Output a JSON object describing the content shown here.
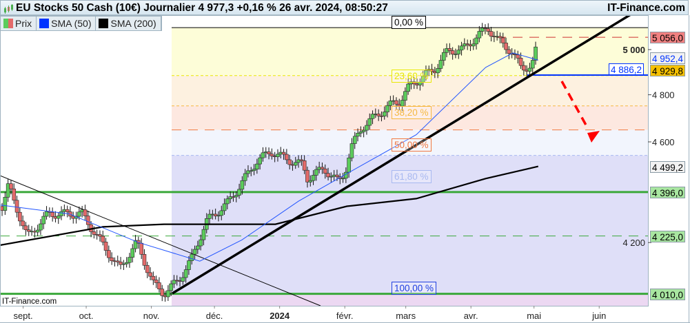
{
  "header": {
    "title": "EU Stocks 50 Cash (10€) Journalier 4 977,3 +0,16 % 26 avr. 2024, 08:50:27",
    "brand": "IT-Finance.com"
  },
  "legend": [
    {
      "label": "Prix",
      "color": "#5ccc5c",
      "color2": "#e36a6a"
    },
    {
      "label": "SMA (50)",
      "color": "#0033ff"
    },
    {
      "label": "SMA (200)",
      "color": "#000000"
    }
  ],
  "watermark": "IT-Finance.com",
  "price_tags": [
    {
      "label": "5 056,0",
      "value": 5056.0,
      "bg": "#f08080",
      "fg": "#000000"
    },
    {
      "label": "4 952,4",
      "value": 4952.4,
      "bg": "#f2f2f2",
      "fg": "#0033ff"
    },
    {
      "label": "4 929,8",
      "value": 4929.8,
      "bg": "#f5c000",
      "fg": "#000000"
    },
    {
      "label": "4 499,2",
      "value": 4499.2,
      "bg": "#f2f2f2",
      "fg": "#000000"
    },
    {
      "label": "4 396,0",
      "value": 4396.0,
      "bg": "#a8e6a0",
      "fg": "#000000"
    },
    {
      "label": "4 225,0",
      "value": 4225.0,
      "bg": "#a8e6a0",
      "fg": "#000000"
    },
    {
      "label": "4 010,0",
      "value": 4010.0,
      "bg": "#a8e6a0",
      "fg": "#000000"
    }
  ],
  "support_label": {
    "label": "4 886,2",
    "value": 4886.2,
    "color": "#0033ff"
  },
  "fibonacci": [
    {
      "label": "0,00 %",
      "value": 5100,
      "color": "#000000",
      "zone": "#fdfdd8"
    },
    {
      "label": "23,60 %",
      "value": 4884,
      "color": "#e8e800",
      "zone": "#fdf1e0"
    },
    {
      "label": "38,20 %",
      "value": 4752,
      "color": "#f5b840",
      "zone": "#fde8e0"
    },
    {
      "label": "50,00 %",
      "value": 4650,
      "color": "#f07840",
      "zone": "#f2f5fd"
    },
    {
      "label": "61,80 %",
      "value": 4544,
      "color": "#a8b8f0",
      "zone": "#dfdff8"
    },
    {
      "label": "100,00 %",
      "value": 4010,
      "color": "#2040e0",
      "zone": "#ecd8f2"
    }
  ],
  "chart_data": {
    "type": "candlestick",
    "y_scale": "log",
    "y_ticks": [
      4200,
      4600,
      4800,
      5000
    ],
    "y_tick_labels": [
      "4 200",
      "4 600",
      "4 800",
      "5 000"
    ],
    "x_ticks": [
      {
        "label": "sept.",
        "date": "2023-09-01"
      },
      {
        "label": "oct.",
        "date": "2023-10-01"
      },
      {
        "label": "nov.",
        "date": "2023-11-01"
      },
      {
        "label": "déc.",
        "date": "2023-12-01"
      },
      {
        "label": "2024",
        "date": "2024-01-01",
        "bold": true
      },
      {
        "label": "févr.",
        "date": "2024-02-01"
      },
      {
        "label": "mars",
        "date": "2024-03-01"
      },
      {
        "label": "avr.",
        "date": "2024-04-01"
      },
      {
        "label": "mai",
        "date": "2024-05-01"
      },
      {
        "label": "juin",
        "date": "2024-06-01"
      }
    ],
    "close_path": [
      [
        "2023-08-22",
        4339
      ],
      [
        "2023-08-25",
        4420
      ],
      [
        "2023-09-03",
        4220
      ],
      [
        "2023-09-13",
        4310
      ],
      [
        "2023-09-29",
        4310
      ],
      [
        "2023-10-09",
        4190
      ],
      [
        "2023-10-17",
        4100
      ],
      [
        "2023-10-25",
        4200
      ],
      [
        "2023-11-02",
        4045
      ],
      [
        "2023-11-07",
        4010
      ],
      [
        "2023-11-14",
        4060
      ],
      [
        "2023-11-20",
        4135
      ],
      [
        "2023-11-27",
        4280
      ],
      [
        "2023-12-07",
        4350
      ],
      [
        "2023-12-13",
        4420
      ],
      [
        "2023-12-21",
        4520
      ],
      [
        "2023-12-28",
        4560
      ],
      [
        "2024-01-05",
        4525
      ],
      [
        "2024-01-12",
        4505
      ],
      [
        "2024-01-14",
        4450
      ],
      [
        "2024-01-22",
        4490
      ],
      [
        "2024-01-29",
        4435
      ],
      [
        "2024-02-01",
        4475
      ],
      [
        "2024-02-04",
        4575
      ],
      [
        "2024-02-09",
        4660
      ],
      [
        "2024-02-17",
        4718
      ],
      [
        "2024-02-24",
        4763
      ],
      [
        "2024-02-27",
        4770
      ],
      [
        "2024-03-03",
        4840
      ],
      [
        "2024-03-15",
        4915
      ],
      [
        "2024-03-21",
        4995
      ],
      [
        "2024-03-28",
        5000
      ],
      [
        "2024-04-04",
        5060
      ],
      [
        "2024-04-09",
        5100
      ],
      [
        "2024-04-14",
        5040
      ],
      [
        "2024-04-20",
        4995
      ],
      [
        "2024-04-25",
        4915
      ],
      [
        "2024-04-30",
        4930
      ],
      [
        "2024-05-02",
        5000
      ],
      [
        "2024-05-03",
        4977
      ]
    ],
    "sma50_path": [
      [
        "2023-08-21",
        4345
      ],
      [
        "2023-09-23",
        4310
      ],
      [
        "2023-10-26",
        4200
      ],
      [
        "2023-11-24",
        4130
      ],
      [
        "2023-12-14",
        4210
      ],
      [
        "2024-01-10",
        4360
      ],
      [
        "2024-02-02",
        4470
      ],
      [
        "2024-03-06",
        4630
      ],
      [
        "2024-04-08",
        4920
      ],
      [
        "2024-04-21",
        4985
      ],
      [
        "2024-05-03",
        4952.4
      ]
    ],
    "sma200_path": [
      [
        "2023-08-21",
        4190
      ],
      [
        "2023-10-09",
        4260
      ],
      [
        "2023-11-07",
        4270
      ],
      [
        "2023-12-30",
        4270
      ],
      [
        "2024-02-02",
        4340
      ],
      [
        "2024-03-06",
        4370
      ],
      [
        "2024-04-08",
        4450
      ],
      [
        "2024-05-03",
        4499.2
      ]
    ]
  }
}
